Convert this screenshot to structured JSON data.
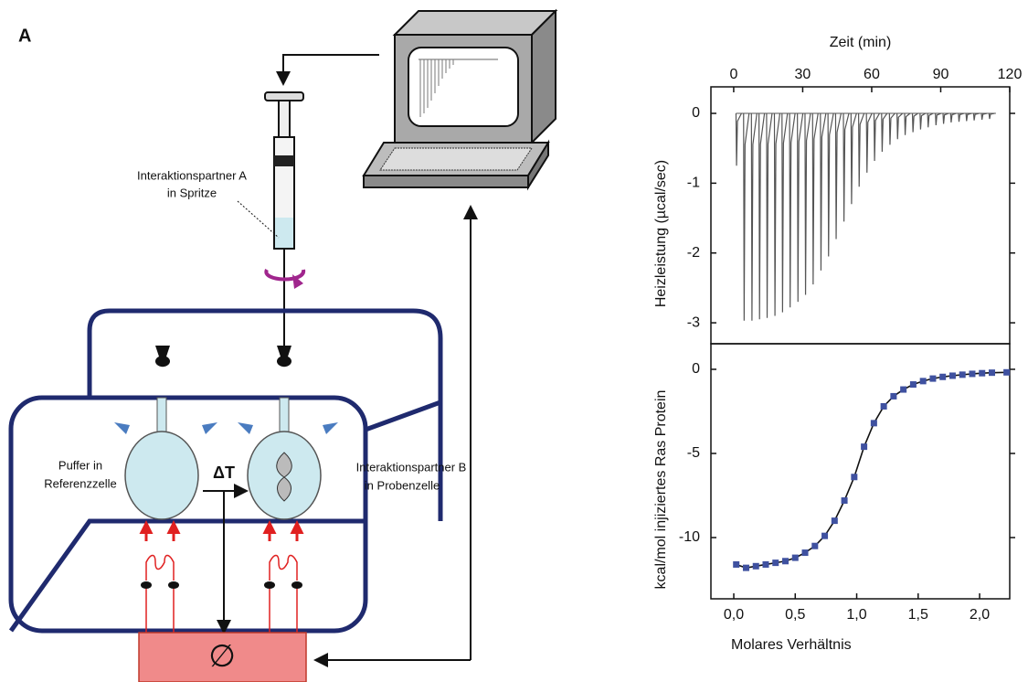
{
  "diagram": {
    "panel_label": "A",
    "syringe_label": [
      "Interaktionspartner A",
      "in Spritze"
    ],
    "reference_label": [
      "Puffer in",
      "Referenzzelle"
    ],
    "sample_label": [
      "Interaktionspartner B",
      "in Probenzelle"
    ],
    "delta_t": "ΔT",
    "null_symbol": "∅"
  },
  "chart_data": [
    {
      "type": "line",
      "xlabel": "Zeit (min)",
      "ylabel": "Heizleistung (µcal/sec)",
      "color": "#555555",
      "x": [
        1,
        4.3,
        7.7,
        11,
        14.3,
        17.7,
        21,
        24.3,
        27.7,
        31,
        34.3,
        37.7,
        41,
        44.3,
        47.7,
        51,
        54.3,
        57.7,
        61,
        64.3,
        67.7,
        71,
        74.3,
        77.7,
        81,
        84.3,
        87.7,
        91,
        94.3,
        97.7,
        101,
        104.3,
        107.7,
        111
      ],
      "values": [
        -0.75,
        -2.97,
        -2.97,
        -2.95,
        -2.93,
        -2.9,
        -2.85,
        -2.78,
        -2.7,
        -2.6,
        -2.45,
        -2.25,
        -2.05,
        -1.8,
        -1.55,
        -1.3,
        -1.05,
        -0.85,
        -0.68,
        -0.55,
        -0.45,
        -0.37,
        -0.31,
        -0.27,
        -0.23,
        -0.2,
        -0.17,
        -0.15,
        -0.13,
        -0.12,
        -0.11,
        -0.1,
        -0.09,
        -0.08
      ],
      "xlim": [
        -9.9,
        120
      ],
      "ylim": [
        -3.3,
        0.38
      ],
      "xticks": [
        0,
        30,
        60,
        90,
        120
      ],
      "yticks": [
        0,
        -1,
        -2,
        -3
      ]
    },
    {
      "type": "scatter",
      "xlabel": "Molares Verhältnis",
      "ylabel": "kcal/mol injiziertes Ras Protein",
      "color": "#3f51a0",
      "line_color": "#111111",
      "x": [
        0.02,
        0.1,
        0.18,
        0.26,
        0.34,
        0.42,
        0.5,
        0.58,
        0.66,
        0.74,
        0.82,
        0.9,
        0.98,
        1.06,
        1.14,
        1.22,
        1.3,
        1.38,
        1.46,
        1.54,
        1.62,
        1.7,
        1.78,
        1.86,
        1.94,
        2.02,
        2.1,
        2.22
      ],
      "values": [
        -11.6,
        -11.8,
        -11.7,
        -11.6,
        -11.5,
        -11.4,
        -11.2,
        -10.9,
        -10.5,
        -9.9,
        -9.0,
        -7.8,
        -6.4,
        -4.6,
        -3.2,
        -2.2,
        -1.6,
        -1.2,
        -0.9,
        -0.7,
        -0.55,
        -0.45,
        -0.38,
        -0.32,
        -0.27,
        -0.23,
        -0.2,
        -0.18
      ],
      "xlim": [
        -0.186,
        2.245
      ],
      "ylim": [
        -13.64,
        1.52
      ],
      "xticks": [
        {
          "value": 0,
          "label": "0,0"
        },
        {
          "value": 0.5,
          "label": "0,5"
        },
        {
          "value": 1,
          "label": "1,0"
        },
        {
          "value": 1.5,
          "label": "1,5"
        },
        {
          "value": 2,
          "label": "2,0"
        }
      ],
      "yticks": [
        0,
        -5,
        -10
      ]
    }
  ]
}
